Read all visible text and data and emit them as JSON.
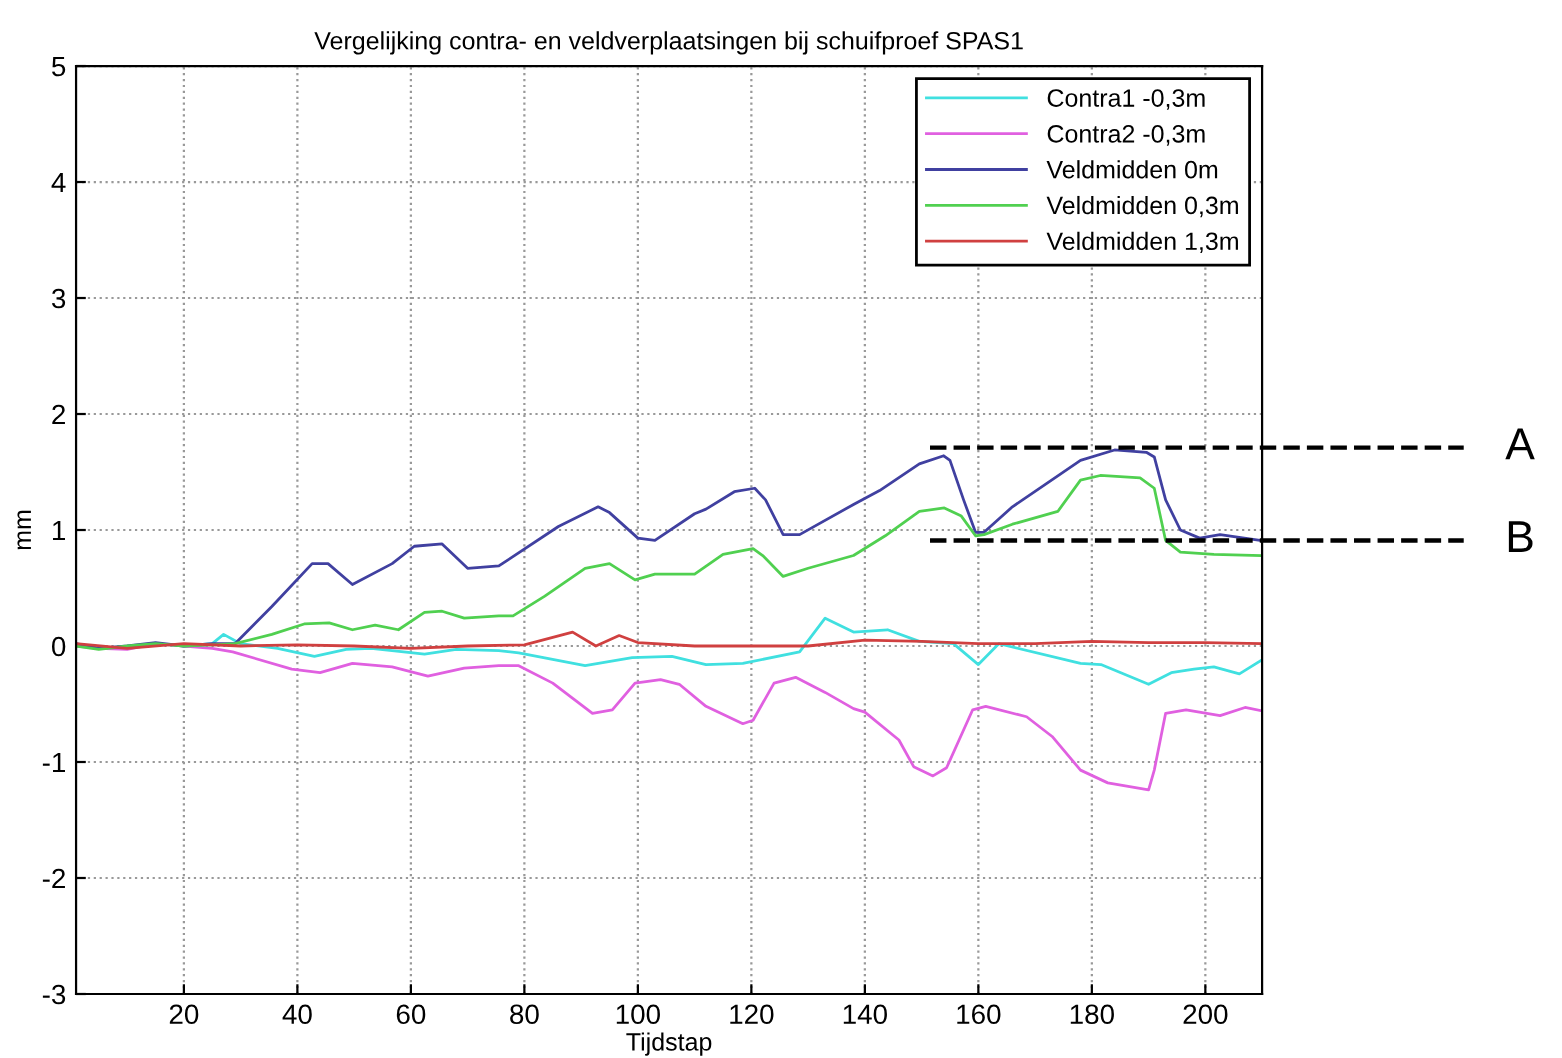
{
  "chart_data": {
    "type": "line",
    "title": "Vergelijking contra- en veldverplaatsingen bij schuifproef SPAS1",
    "xlabel": "Tijdstap",
    "ylabel": "mm",
    "xlim": [
      1,
      210
    ],
    "xticks": [
      20,
      40,
      60,
      80,
      100,
      120,
      140,
      160,
      180,
      200
    ],
    "ylim": [
      -3,
      5
    ],
    "yticks": [
      -3,
      -2,
      -1,
      0,
      1,
      2,
      3,
      4,
      5
    ],
    "grid": true,
    "legend": "top right",
    "line_style": "solid",
    "marker": "none",
    "ref_lines": [
      {
        "axis": "y",
        "value": 1.71,
        "label": "A",
        "color": "#000000",
        "line_style": "dashed"
      },
      {
        "axis": "y",
        "value": 0.91,
        "label": "B",
        "color": "#000000",
        "line_style": "dashed"
      }
    ],
    "series": [
      {
        "name": "Contra1 -0,3m",
        "color": "#40e0e0",
        "x": [
          20,
          25,
          27,
          30,
          36.5,
          43,
          48.6,
          53,
          62.4,
          68,
          75.5,
          79,
          90.7,
          99,
          106,
          112,
          118.5,
          128.5,
          133,
          138,
          144,
          149.6,
          155.6,
          160,
          163.6,
          178,
          181.6,
          190,
          194,
          198,
          201.5,
          206,
          210
        ],
        "values": [
          0,
          0.02,
          0.1,
          0.02,
          -0.02,
          -0.09,
          -0.03,
          -0.02,
          -0.07,
          -0.03,
          -0.04,
          -0.06,
          -0.17,
          -0.1,
          -0.09,
          -0.16,
          -0.15,
          -0.05,
          0.24,
          0.12,
          0.14,
          0.04,
          0.02,
          -0.16,
          0.02,
          -0.15,
          -0.16,
          -0.33,
          -0.23,
          -0.2,
          -0.18,
          -0.24,
          -0.12
        ]
      },
      {
        "name": "Contra2 -0,3m",
        "color": "#e060e0",
        "x": [
          1,
          5,
          10,
          15,
          20,
          25,
          28.6,
          39,
          44,
          49.7,
          56.7,
          63,
          69.4,
          75.5,
          79,
          85,
          92,
          95.5,
          99.5,
          104,
          107.3,
          112,
          118.5,
          120.3,
          124,
          127.8,
          133,
          138,
          140,
          146,
          148.6,
          152,
          154.4,
          159,
          161.3,
          168.5,
          173,
          178,
          182.8,
          190,
          191,
          193,
          196.6,
          202.6,
          207,
          210
        ],
        "values": [
          0,
          -0.02,
          -0.03,
          0.02,
          0,
          -0.02,
          -0.05,
          -0.2,
          -0.23,
          -0.15,
          -0.18,
          -0.26,
          -0.19,
          -0.17,
          -0.17,
          -0.32,
          -0.58,
          -0.55,
          -0.32,
          -0.29,
          -0.33,
          -0.52,
          -0.67,
          -0.64,
          -0.32,
          -0.27,
          -0.4,
          -0.54,
          -0.57,
          -0.81,
          -1.04,
          -1.12,
          -1.05,
          -0.55,
          -0.52,
          -0.61,
          -0.78,
          -1.07,
          -1.18,
          -1.24,
          -1.07,
          -0.58,
          -0.55,
          -0.6,
          -0.53,
          -0.56
        ]
      },
      {
        "name": "Veldmidden 0m",
        "color": "#4040a0",
        "x": [
          1,
          5,
          10,
          15,
          20,
          25,
          29,
          35.5,
          42.6,
          45.4,
          49.7,
          56.7,
          60.6,
          65.5,
          70,
          75.5,
          86,
          93,
          95,
          100,
          103,
          110,
          112,
          117,
          120.6,
          122.5,
          125.6,
          128.5,
          138,
          142.6,
          149.6,
          153.9,
          155,
          157.4,
          159.5,
          161,
          166,
          172,
          178,
          184,
          189.6,
          191,
          193,
          195.6,
          199,
          202.6,
          209.7
        ],
        "values": [
          0.02,
          -0.02,
          0,
          0.03,
          0,
          0.02,
          0.02,
          0.34,
          0.71,
          0.71,
          0.53,
          0.71,
          0.86,
          0.88,
          0.67,
          0.69,
          1.03,
          1.2,
          1.15,
          0.93,
          0.91,
          1.14,
          1.18,
          1.33,
          1.36,
          1.26,
          0.96,
          0.96,
          1.22,
          1.34,
          1.57,
          1.64,
          1.6,
          1.26,
          0.98,
          0.98,
          1.2,
          1.4,
          1.6,
          1.69,
          1.67,
          1.63,
          1.26,
          1.0,
          0.93,
          0.96,
          0.91
        ]
      },
      {
        "name": "Veldmidden 0,3m",
        "color": "#50d050",
        "x": [
          1,
          5,
          10,
          15,
          20,
          25,
          29,
          35.5,
          41.2,
          45.6,
          49.7,
          53.7,
          57.8,
          62.4,
          65.5,
          69.4,
          75.5,
          78,
          83.6,
          90.7,
          95,
          99.5,
          103,
          110,
          115,
          120.3,
          122,
          125.6,
          130,
          138,
          143.6,
          149.6,
          154,
          157,
          159.5,
          161,
          166,
          174,
          178,
          181.5,
          188.5,
          191,
          193,
          195.6,
          201.5,
          209.7
        ],
        "values": [
          0,
          -0.03,
          0,
          0.02,
          0,
          0.01,
          0.02,
          0.1,
          0.19,
          0.2,
          0.14,
          0.18,
          0.14,
          0.29,
          0.3,
          0.24,
          0.26,
          0.26,
          0.43,
          0.67,
          0.71,
          0.57,
          0.62,
          0.62,
          0.79,
          0.84,
          0.78,
          0.6,
          0.67,
          0.78,
          0.95,
          1.16,
          1.19,
          1.12,
          0.95,
          0.96,
          1.05,
          1.16,
          1.43,
          1.47,
          1.45,
          1.36,
          0.91,
          0.81,
          0.79,
          0.78
        ]
      },
      {
        "name": "Veldmidden 1,3m",
        "color": "#d04040",
        "x": [
          1,
          10,
          20,
          30,
          40,
          50,
          60,
          70,
          80,
          88.5,
          92.6,
          96.7,
          100,
          110,
          120,
          130,
          140,
          150,
          160,
          170,
          180,
          190,
          200,
          210
        ],
        "values": [
          0.02,
          -0.02,
          0.02,
          0,
          0.01,
          0,
          -0.02,
          0,
          0.01,
          0.12,
          0,
          0.09,
          0.03,
          0,
          0,
          0,
          0.05,
          0.04,
          0.02,
          0.02,
          0.04,
          0.03,
          0.03,
          0.02
        ]
      }
    ]
  }
}
